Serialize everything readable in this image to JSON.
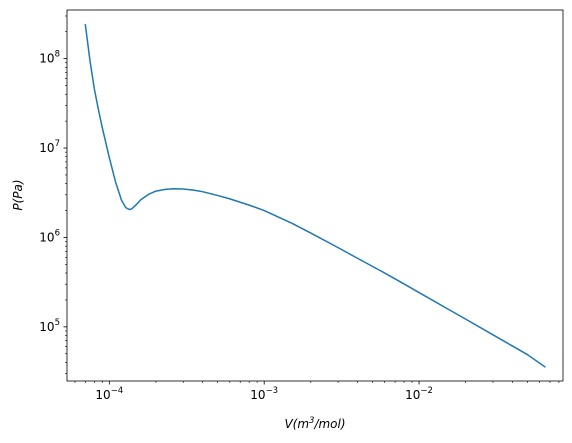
{
  "chart_data": {
    "type": "line",
    "title": "",
    "xlabel": {
      "base": "V(m",
      "sup": "3",
      "rest": "/mol)"
    },
    "ylabel": "P(Pa)",
    "xscale": "log",
    "yscale": "log",
    "xlim": [
      5.33e-05,
      0.085
    ],
    "ylim": [
      24800,
      350000000
    ],
    "grid": false,
    "legend": "none",
    "line_color": "#1f77b4",
    "x_ticks": [
      {
        "value": 0.0001,
        "base": "10",
        "exp": "−4"
      },
      {
        "value": 0.001,
        "base": "10",
        "exp": "−3"
      },
      {
        "value": 0.01,
        "base": "10",
        "exp": "−2"
      }
    ],
    "y_ticks": [
      {
        "value": 100000,
        "base": "10",
        "exp": "5"
      },
      {
        "value": 1000000,
        "base": "10",
        "exp": "6"
      },
      {
        "value": 10000000,
        "base": "10",
        "exp": "7"
      },
      {
        "value": 100000000,
        "base": "10",
        "exp": "8"
      }
    ],
    "series": [
      {
        "x": [
          7e-05,
          7.5e-05,
          8e-05,
          8.5e-05,
          9e-05,
          0.0001,
          0.00011,
          0.00012,
          0.000128,
          0.000135,
          0.00014,
          0.00015,
          0.00016,
          0.00018,
          0.0002,
          0.00023,
          0.00026,
          0.0003,
          0.00035,
          0.0004,
          0.0005,
          0.0006,
          0.0008,
          0.001,
          0.0015,
          0.002,
          0.003,
          0.004,
          0.006,
          0.008,
          0.01,
          0.015,
          0.02,
          0.03,
          0.04,
          0.05,
          0.065
        ],
        "y": [
          240000000,
          95000000,
          46000000,
          27000000,
          17000000,
          7800000,
          4100000,
          2600000,
          2150000,
          2050000,
          2100000,
          2350000,
          2650000,
          3050000,
          3300000,
          3450000,
          3500000,
          3480000,
          3380000,
          3250000,
          2950000,
          2700000,
          2300000,
          2000000,
          1450000,
          1120000,
          770000,
          585000,
          400000,
          302000,
          242000,
          162000,
          122000,
          81500,
          61200,
          49000,
          35700
        ]
      }
    ]
  }
}
